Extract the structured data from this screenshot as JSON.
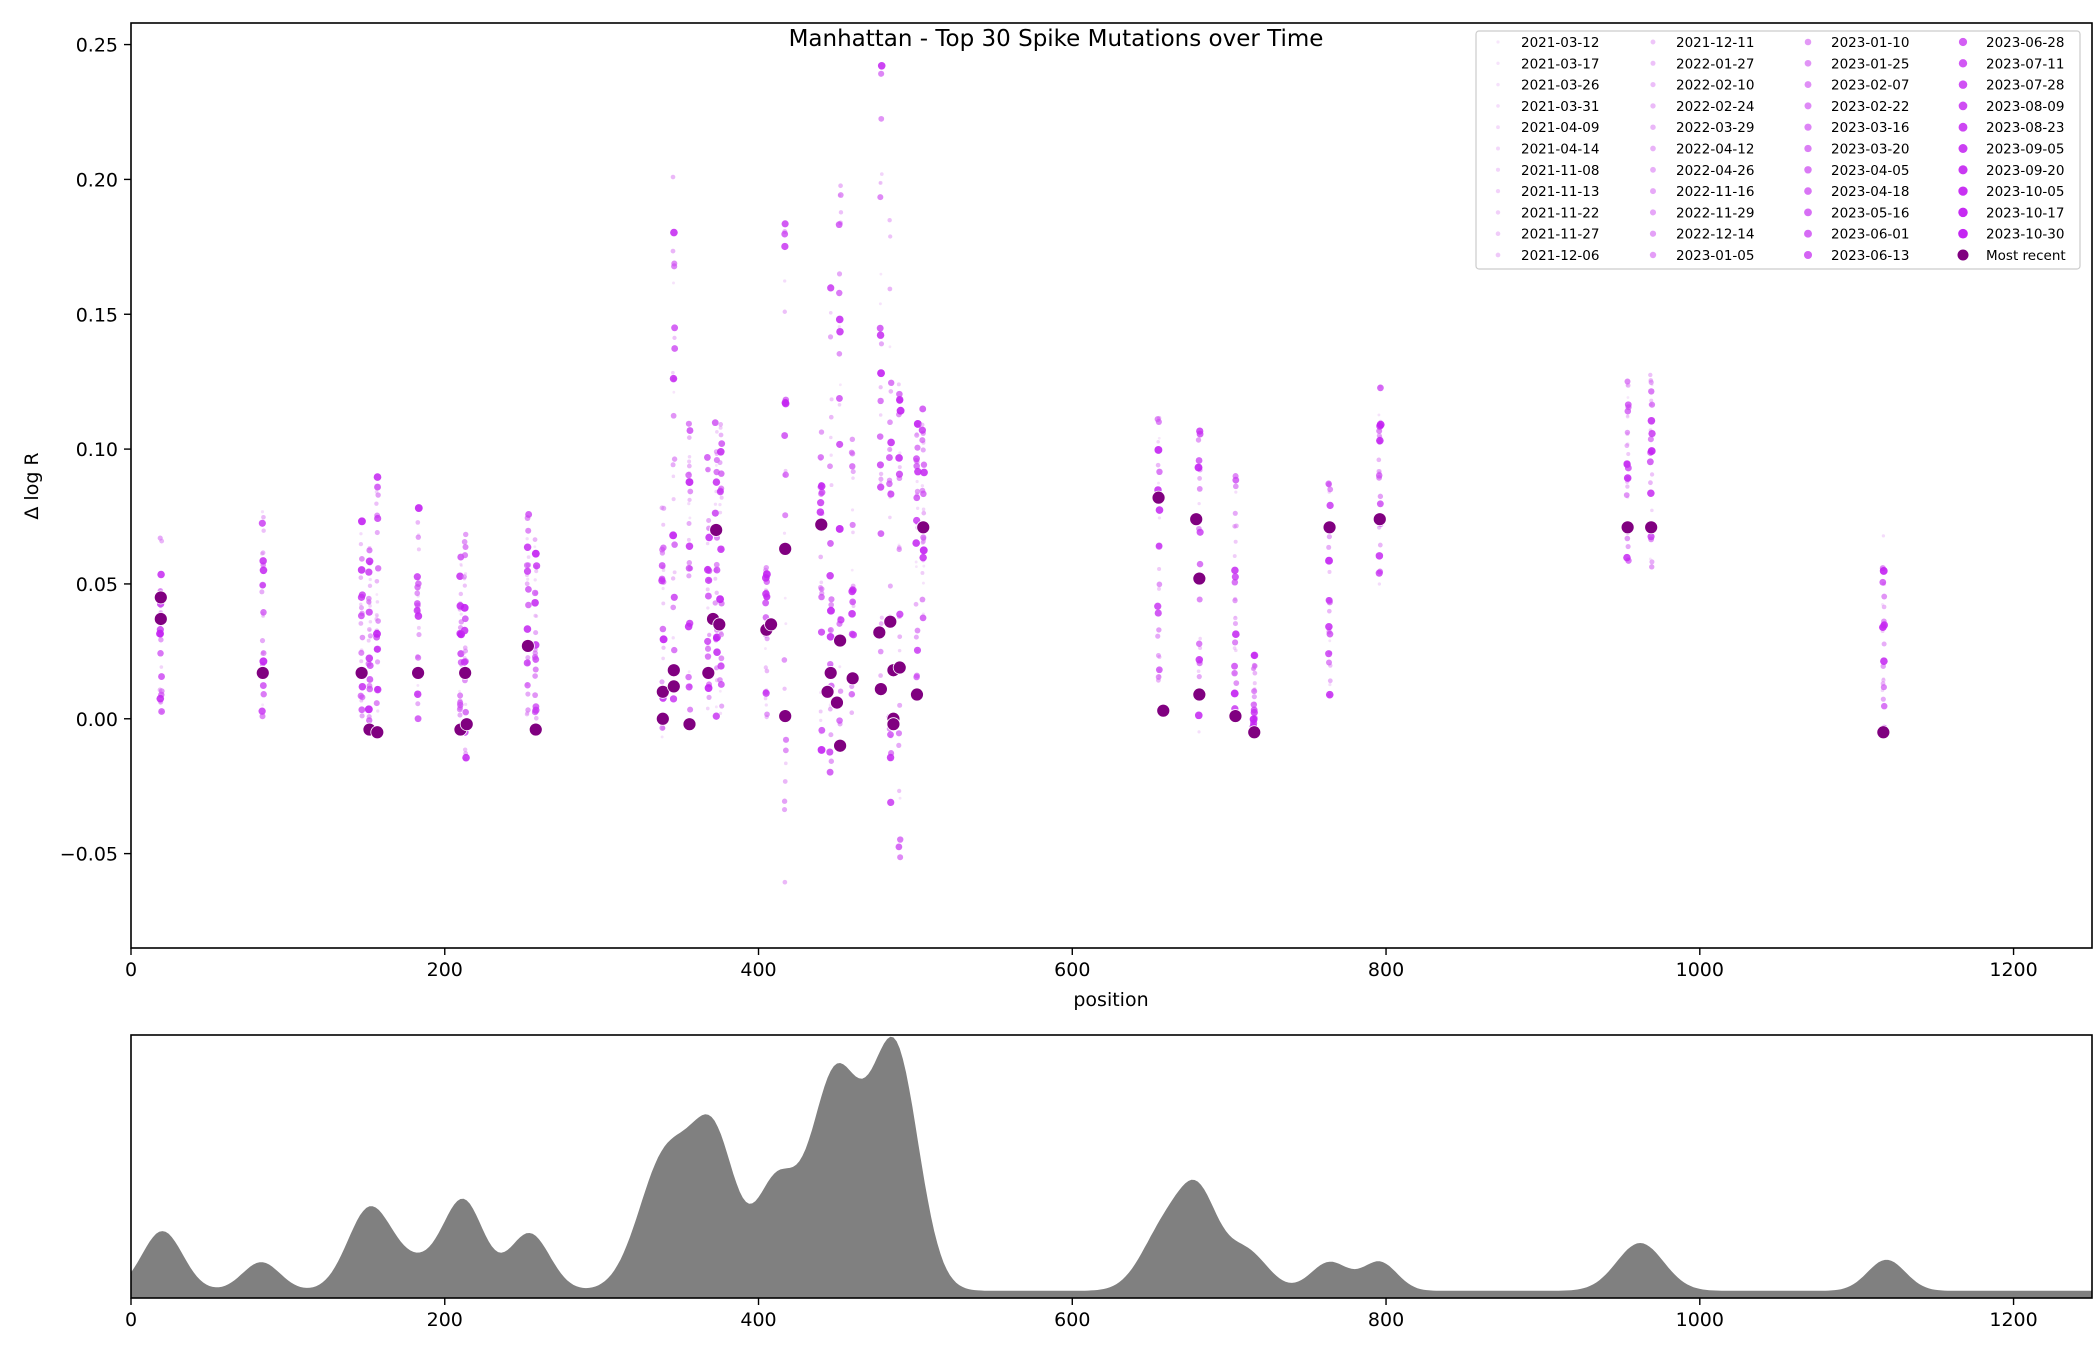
{
  "chart_data": [
    {
      "type": "scatter",
      "title": "Manhattan - Top 30 Spike Mutations over Time",
      "xlabel": "position",
      "ylabel": "Δ log R",
      "xlim": [
        0,
        1250
      ],
      "ylim": [
        -0.085,
        0.258
      ],
      "xticks": [
        0,
        200,
        400,
        600,
        800,
        1000,
        1200
      ],
      "yticks": [
        -0.05,
        0.0,
        0.05,
        0.1,
        0.15,
        0.2,
        0.25
      ],
      "xtick_labels": [
        "0",
        "200",
        "400",
        "600",
        "800",
        "1000",
        "1200"
      ],
      "ytick_labels": [
        "−0.05",
        "0.00",
        "0.05",
        "0.10",
        "0.15",
        "0.20",
        "0.25"
      ],
      "grid": false,
      "legend_placement": "top-right",
      "legend_columns": 4,
      "colors": {
        "historic_light": "#e8b6f4",
        "historic_dark": "#c11af1",
        "most_recent": "#800080"
      },
      "series": [
        {
          "name": "2021-03-12"
        },
        {
          "name": "2021-03-17"
        },
        {
          "name": "2021-03-26"
        },
        {
          "name": "2021-03-31"
        },
        {
          "name": "2021-04-09"
        },
        {
          "name": "2021-04-14"
        },
        {
          "name": "2021-11-08"
        },
        {
          "name": "2021-11-13"
        },
        {
          "name": "2021-11-22"
        },
        {
          "name": "2021-11-27"
        },
        {
          "name": "2021-12-06"
        },
        {
          "name": "2021-12-11"
        },
        {
          "name": "2022-01-27"
        },
        {
          "name": "2022-02-10"
        },
        {
          "name": "2022-02-24"
        },
        {
          "name": "2022-03-29"
        },
        {
          "name": "2022-04-12"
        },
        {
          "name": "2022-04-26"
        },
        {
          "name": "2022-11-16"
        },
        {
          "name": "2022-11-29"
        },
        {
          "name": "2022-12-14"
        },
        {
          "name": "2023-01-05"
        },
        {
          "name": "2023-01-10"
        },
        {
          "name": "2023-01-25"
        },
        {
          "name": "2023-02-07"
        },
        {
          "name": "2023-02-22"
        },
        {
          "name": "2023-03-16"
        },
        {
          "name": "2023-03-20"
        },
        {
          "name": "2023-04-05"
        },
        {
          "name": "2023-04-18"
        },
        {
          "name": "2023-05-16"
        },
        {
          "name": "2023-06-01"
        },
        {
          "name": "2023-06-13"
        },
        {
          "name": "2023-06-28"
        },
        {
          "name": "2023-07-11"
        },
        {
          "name": "2023-07-28"
        },
        {
          "name": "2023-08-09"
        },
        {
          "name": "2023-08-23"
        },
        {
          "name": "2023-09-05"
        },
        {
          "name": "2023-09-20"
        },
        {
          "name": "2023-10-05"
        },
        {
          "name": "2023-10-17"
        },
        {
          "name": "2023-10-30"
        },
        {
          "name": "Most recent",
          "points": [
            [
              19,
              0.045
            ],
            [
              19,
              0.037
            ],
            [
              84,
              0.017
            ],
            [
              147,
              0.017
            ],
            [
              152,
              -0.004
            ],
            [
              157,
              -0.005
            ],
            [
              183,
              0.017
            ],
            [
              210,
              -0.004
            ],
            [
              213,
              0.017
            ],
            [
              214,
              -0.002
            ],
            [
              253,
              0.027
            ],
            [
              258,
              -0.004
            ],
            [
              339,
              0.01
            ],
            [
              339,
              0.0
            ],
            [
              346,
              0.018
            ],
            [
              346,
              0.012
            ],
            [
              356,
              -0.002
            ],
            [
              368,
              0.017
            ],
            [
              371,
              0.037
            ],
            [
              373,
              0.07
            ],
            [
              375,
              0.035
            ],
            [
              405,
              0.033
            ],
            [
              408,
              0.035
            ],
            [
              417,
              0.001
            ],
            [
              417,
              0.063
            ],
            [
              440,
              0.072
            ],
            [
              444,
              0.01
            ],
            [
              446,
              0.017
            ],
            [
              450,
              0.006
            ],
            [
              452,
              0.029
            ],
            [
              452,
              -0.01
            ],
            [
              460,
              0.015
            ],
            [
              477,
              0.032
            ],
            [
              478,
              0.011
            ],
            [
              484,
              0.036
            ],
            [
              486,
              0.018
            ],
            [
              486,
              0.0
            ],
            [
              486,
              -0.002
            ],
            [
              490,
              0.019
            ],
            [
              501,
              0.009
            ],
            [
              505,
              0.071
            ],
            [
              655,
              0.082
            ],
            [
              658,
              0.003
            ],
            [
              679,
              0.074
            ],
            [
              681,
              0.052
            ],
            [
              681,
              0.009
            ],
            [
              704,
              0.001
            ],
            [
              716,
              -0.005
            ],
            [
              764,
              0.071
            ],
            [
              796,
              0.074
            ],
            [
              954,
              0.071
            ],
            [
              969,
              0.071
            ],
            [
              1117,
              -0.005
            ]
          ]
        }
      ],
      "history_columns": [
        {
          "x": 19,
          "low": -0.005,
          "high": 0.07
        },
        {
          "x": 84,
          "low": 0.0,
          "high": 0.08
        },
        {
          "x": 147,
          "low": 0.0,
          "high": 0.08
        },
        {
          "x": 152,
          "low": -0.004,
          "high": 0.065
        },
        {
          "x": 157,
          "low": -0.005,
          "high": 0.093
        },
        {
          "x": 183,
          "low": 0.0,
          "high": 0.081
        },
        {
          "x": 210,
          "low": -0.004,
          "high": 0.067
        },
        {
          "x": 213,
          "low": -0.015,
          "high": 0.071
        },
        {
          "x": 253,
          "low": 0.0,
          "high": 0.078
        },
        {
          "x": 258,
          "low": -0.004,
          "high": 0.067
        },
        {
          "x": 339,
          "low": -0.015,
          "high": 0.08
        },
        {
          "x": 346,
          "low": 0.0,
          "high": 0.206
        },
        {
          "x": 356,
          "low": -0.002,
          "high": 0.112
        },
        {
          "x": 368,
          "low": 0.0,
          "high": 0.1
        },
        {
          "x": 373,
          "low": 0.0,
          "high": 0.111
        },
        {
          "x": 376,
          "low": 0.0,
          "high": 0.11
        },
        {
          "x": 405,
          "low": 0.0,
          "high": 0.057
        },
        {
          "x": 417,
          "low": -0.068,
          "high": 0.187
        },
        {
          "x": 440,
          "low": -0.018,
          "high": 0.11
        },
        {
          "x": 446,
          "low": -0.022,
          "high": 0.163
        },
        {
          "x": 452,
          "low": -0.01,
          "high": 0.2
        },
        {
          "x": 460,
          "low": 0.0,
          "high": 0.105
        },
        {
          "x": 478,
          "low": -0.012,
          "high": 0.244
        },
        {
          "x": 484,
          "low": -0.049,
          "high": 0.187
        },
        {
          "x": 490,
          "low": -0.059,
          "high": 0.125
        },
        {
          "x": 501,
          "low": 0.009,
          "high": 0.118
        },
        {
          "x": 505,
          "low": 0.035,
          "high": 0.115
        },
        {
          "x": 655,
          "low": 0.0,
          "high": 0.118
        },
        {
          "x": 681,
          "low": -0.005,
          "high": 0.111
        },
        {
          "x": 704,
          "low": 0.001,
          "high": 0.102
        },
        {
          "x": 716,
          "low": -0.005,
          "high": 0.025
        },
        {
          "x": 764,
          "low": 0.008,
          "high": 0.088
        },
        {
          "x": 796,
          "low": 0.048,
          "high": 0.124
        },
        {
          "x": 954,
          "low": 0.055,
          "high": 0.127
        },
        {
          "x": 969,
          "low": 0.055,
          "high": 0.13
        },
        {
          "x": 1117,
          "low": -0.005,
          "high": 0.068
        }
      ]
    },
    {
      "type": "area",
      "title": "",
      "xlabel": "",
      "ylabel": "",
      "xlim": [
        0,
        1250
      ],
      "ylim": [
        0,
        1.1
      ],
      "xticks": [
        0,
        200,
        400,
        600,
        800,
        1000,
        1200
      ],
      "xtick_labels": [
        "0",
        "200",
        "400",
        "600",
        "800",
        "1000",
        "1200"
      ],
      "show_yticks": false,
      "fill_color": "#808080",
      "baseline": 0.03,
      "peaks": [
        {
          "center": 20,
          "height": 0.25,
          "width": 13
        },
        {
          "center": 83,
          "height": 0.12,
          "width": 12
        },
        {
          "center": 152,
          "height": 0.34,
          "width": 14
        },
        {
          "center": 182,
          "height": 0.1,
          "width": 15
        },
        {
          "center": 212,
          "height": 0.37,
          "width": 13
        },
        {
          "center": 254,
          "height": 0.24,
          "width": 13
        },
        {
          "center": 341,
          "height": 0.56,
          "width": 17
        },
        {
          "center": 372,
          "height": 0.6,
          "width": 14
        },
        {
          "center": 411,
          "height": 0.43,
          "width": 13
        },
        {
          "center": 449,
          "height": 0.9,
          "width": 16
        },
        {
          "center": 487,
          "height": 1.0,
          "width": 15
        },
        {
          "center": 660,
          "height": 0.27,
          "width": 15
        },
        {
          "center": 681,
          "height": 0.33,
          "width": 12
        },
        {
          "center": 710,
          "height": 0.17,
          "width": 14
        },
        {
          "center": 764,
          "height": 0.12,
          "width": 12
        },
        {
          "center": 796,
          "height": 0.12,
          "width": 11
        },
        {
          "center": 962,
          "height": 0.2,
          "width": 15
        },
        {
          "center": 1119,
          "height": 0.13,
          "width": 12
        }
      ]
    }
  ]
}
